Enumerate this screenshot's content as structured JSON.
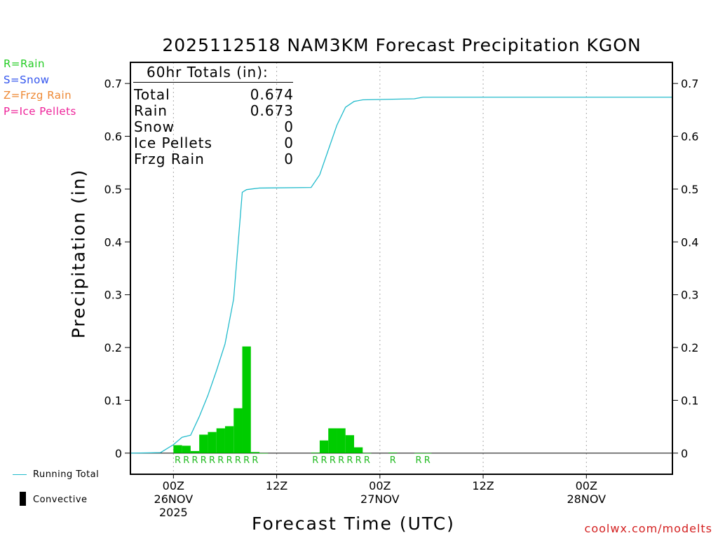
{
  "title": "2025112518 NAM3KM Forecast Precipitation KGON",
  "legend_types": [
    {
      "label": "R=Rain",
      "color": "#22cc22"
    },
    {
      "label": "S=Snow",
      "color": "#3355ee"
    },
    {
      "label": "Z=Frzg Rain",
      "color": "#ee8833"
    },
    {
      "label": "P=Ice Pellets",
      "color": "#ee2299"
    }
  ],
  "totals": {
    "header": "60hr Totals (in):",
    "rows": [
      {
        "label": "Total",
        "value": "0.674"
      },
      {
        "label": "Rain",
        "value": "0.673"
      },
      {
        "label": "Snow",
        "value": "0"
      },
      {
        "label": "Ice Pellets",
        "value": "0"
      },
      {
        "label": "Frzg Rain",
        "value": "0"
      }
    ]
  },
  "bottom_legend": {
    "running_total": "Running Total",
    "convective": "Convective"
  },
  "credit": "coolwx.com/modelts",
  "colors": {
    "bar": "#00cc00",
    "line": "#22bbcc",
    "grid": "#aaaaaa",
    "rain_label": "#22bb22"
  },
  "chart_data": {
    "type": "bar",
    "title": "2025112518 NAM3KM Forecast Precipitation KGON",
    "xlabel": "Forecast Time (UTC)",
    "ylabel": "Precipitation (in)",
    "x_units": "forecast hour from 2025-11-25 18Z",
    "xlim": [
      -5,
      58
    ],
    "ylim": [
      -0.04,
      0.74
    ],
    "y_ticks": [
      0,
      0.1,
      0.2,
      0.3,
      0.4,
      0.5,
      0.6,
      0.7
    ],
    "y_tick_labels": [
      "0",
      "0.1",
      "0.2",
      "0.3",
      "0.4",
      "0.5",
      "0.6",
      "0.7"
    ],
    "x_ticks": [
      {
        "hour": 0,
        "lines": [
          "00Z",
          "26NOV",
          "2025"
        ]
      },
      {
        "hour": 12,
        "lines": [
          "12Z"
        ]
      },
      {
        "hour": 24,
        "lines": [
          "00Z",
          "27NOV"
        ]
      },
      {
        "hour": 36,
        "lines": [
          "12Z"
        ]
      },
      {
        "hour": 48,
        "lines": [
          "00Z",
          "28NOV"
        ]
      }
    ],
    "bars": {
      "hours": [
        0,
        1,
        2,
        3,
        4,
        5,
        6,
        7,
        8,
        9,
        10,
        16,
        17,
        18,
        19,
        20,
        21,
        22,
        25,
        28,
        29
      ],
      "values": [
        0.015,
        0.014,
        0.004,
        0.035,
        0.04,
        0.047,
        0.051,
        0.085,
        0.202,
        0.002,
        0.0,
        0.001,
        0.024,
        0.047,
        0.047,
        0.034,
        0.011,
        0.0,
        0.001,
        0.0,
        0.0
      ]
    },
    "precip_type_labels": {
      "hours": [
        0,
        1,
        2,
        3,
        4,
        5,
        6,
        7,
        8,
        9,
        16,
        17,
        18,
        19,
        20,
        21,
        22,
        25,
        28,
        29
      ],
      "label": "R"
    },
    "running_total": {
      "hours": [
        -5,
        -1.5,
        0,
        1,
        2,
        3,
        4,
        5,
        6,
        7,
        8,
        8.5,
        9,
        10,
        16,
        17,
        18,
        19,
        20,
        21,
        22,
        25,
        28,
        29,
        58
      ],
      "values": [
        0,
        0.001,
        0.016,
        0.03,
        0.034,
        0.069,
        0.109,
        0.156,
        0.207,
        0.292,
        0.494,
        0.499,
        0.5,
        0.502,
        0.503,
        0.527,
        0.574,
        0.621,
        0.655,
        0.666,
        0.669,
        0.67,
        0.671,
        0.674,
        0.674
      ]
    },
    "series_legend": [
      {
        "name": "Running Total",
        "style": "line"
      },
      {
        "name": "Convective",
        "style": "bar"
      }
    ]
  }
}
